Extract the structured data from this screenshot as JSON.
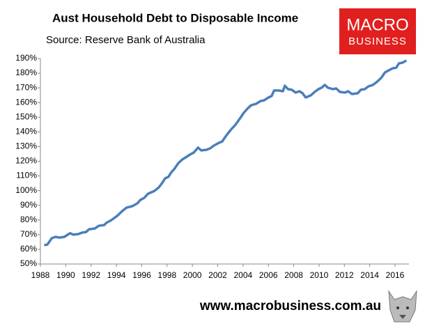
{
  "chart_data": {
    "type": "line",
    "title": "Aust Household Debt to Disposable Income",
    "subtitle": "Source: Reserve Bank of Australia",
    "logo": {
      "line1": "MACRO",
      "line2": "BUSINESS"
    },
    "footer": "www.macrobusiness.com.au",
    "xlim": [
      1988,
      2017.1
    ],
    "xticks": [
      1988,
      1990,
      1992,
      1994,
      1996,
      1998,
      2000,
      2002,
      2004,
      2006,
      2008,
      2010,
      2012,
      2014,
      2016
    ],
    "ylim": [
      50,
      190
    ],
    "yticks": [
      {
        "value": 50,
        "label": "50%"
      },
      {
        "value": 60,
        "label": "60%"
      },
      {
        "value": 70,
        "label": "70%"
      },
      {
        "value": 80,
        "label": "80%"
      },
      {
        "value": 90,
        "label": "90%"
      },
      {
        "value": 100,
        "label": "100%"
      },
      {
        "value": 110,
        "label": "110%"
      },
      {
        "value": 120,
        "label": "120%"
      },
      {
        "value": 130,
        "label": "130%"
      },
      {
        "value": 140,
        "label": "140%"
      },
      {
        "value": 150,
        "label": "150%"
      },
      {
        "value": 160,
        "label": "160%"
      },
      {
        "value": 170,
        "label": "170%"
      },
      {
        "value": 180,
        "label": "180%"
      },
      {
        "value": 190,
        "label": "190%"
      }
    ],
    "grid": false,
    "color": "#4a7ebb",
    "x": [
      1988.3,
      1988.55,
      1988.9,
      1989.2,
      1989.5,
      1989.9,
      1990.15,
      1990.35,
      1990.6,
      1991,
      1991.3,
      1991.6,
      1991.85,
      1992.3,
      1992.6,
      1993.05,
      1993.2,
      1993.6,
      1994.05,
      1994.45,
      1994.8,
      1995.25,
      1995.65,
      1995.9,
      1996.2,
      1996.5,
      1997,
      1997.35,
      1997.6,
      1997.85,
      1998.1,
      1998.35,
      1998.55,
      1998.9,
      1999.2,
      1999.55,
      1999.8,
      2000.1,
      2000.45,
      2000.7,
      2001.1,
      2001.4,
      2001.7,
      2002.1,
      2002.35,
      2002.7,
      2003.05,
      2003.4,
      2003.8,
      2004.05,
      2004.4,
      2004.65,
      2005.05,
      2005.4,
      2005.65,
      2006,
      2006.25,
      2006.45,
      2006.8,
      2007.15,
      2007.3,
      2007.55,
      2007.85,
      2008.15,
      2008.45,
      2008.7,
      2008.95,
      2009.35,
      2009.65,
      2009.95,
      2010.2,
      2010.45,
      2010.7,
      2011.1,
      2011.35,
      2011.65,
      2012.05,
      2012.3,
      2012.6,
      2013.05,
      2013.3,
      2013.6,
      2013.9,
      2014.25,
      2014.55,
      2014.9,
      2015.2,
      2015.5,
      2015.8,
      2016.1,
      2016.3,
      2016.6,
      2016.9
    ],
    "values": [
      62.8,
      63.3,
      67.6,
      68.5,
      68,
      68.5,
      70,
      71,
      70,
      70.4,
      71.4,
      71.8,
      73.7,
      74.2,
      76,
      76.6,
      78,
      79.9,
      82.7,
      86,
      88.4,
      89.4,
      91.3,
      93.7,
      95.1,
      97.9,
      99.8,
      102.2,
      105,
      108.4,
      109.3,
      112.6,
      114.5,
      118.8,
      121.2,
      123.1,
      124.5,
      125.9,
      129.3,
      127.4,
      127.8,
      128.8,
      130.7,
      132.6,
      133.5,
      137.8,
      141.6,
      144.9,
      149.7,
      153,
      156.3,
      158.2,
      159.2,
      161.1,
      161.5,
      163.4,
      164.4,
      168.2,
      168.2,
      167.7,
      171.5,
      169.1,
      168.7,
      166.8,
      167.7,
      166.3,
      163.4,
      164.9,
      167.2,
      169.1,
      170.1,
      172,
      170.1,
      169.1,
      169.6,
      167.2,
      166.8,
      167.7,
      165.8,
      166.3,
      168.7,
      169.1,
      171,
      172,
      173.9,
      176.7,
      180.5,
      181.9,
      183.3,
      183.8,
      186.7,
      187.2,
      188.6
    ]
  }
}
